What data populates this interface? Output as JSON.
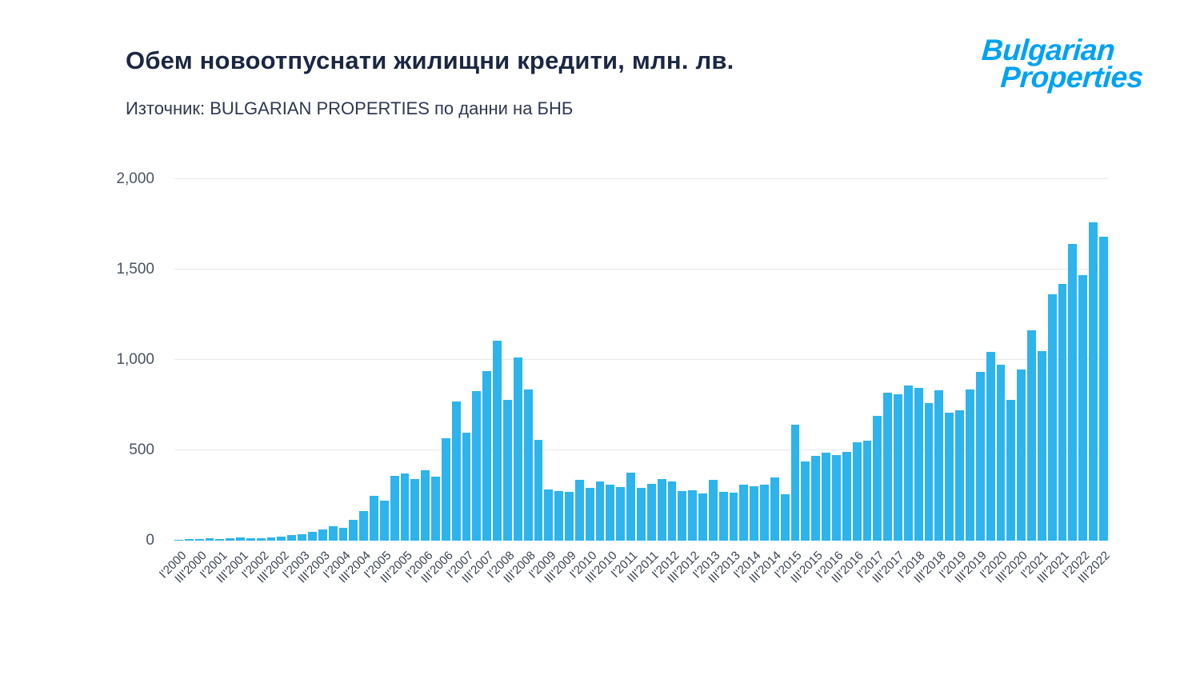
{
  "header": {
    "title": "Обем новоотпуснати жилищни кредити, млн. лв.",
    "source": "Източник: BULGARIAN PROPERTIES по данни на БНБ"
  },
  "logo": {
    "line1": "Bulgarian",
    "line2": "Properties",
    "color": "#00a2f2"
  },
  "chart_data": {
    "type": "bar",
    "title": "Обем новоотпуснати жилищни кредити, млн. лв.",
    "subtitle": "Източник: BULGARIAN PROPERTIES по данни на БНБ",
    "unit": "млн. лв.",
    "bar_color": "#2db4ec",
    "grid": "horizontal",
    "legend_position": "none",
    "ylim": [
      0,
      2000
    ],
    "yticks": [
      0,
      500,
      1000,
      1500,
      2000
    ],
    "ytick_labels": [
      "0",
      "500",
      "1,000",
      "1,500",
      "2,000"
    ],
    "x_tick_every": 2,
    "x_ticks": [
      "I'2000",
      "III'2000",
      "I'2001",
      "III'2001",
      "I'2002",
      "III'2002",
      "I'2003",
      "III'2003",
      "I'2004",
      "III'2004",
      "I'2005",
      "III'2005",
      "I'2006",
      "III'2006",
      "I'2007",
      "III'2007",
      "I'2008",
      "III'2008",
      "I'2009",
      "III'2009",
      "I'2010",
      "III'2010",
      "I'2011",
      "III'2011",
      "I'2012",
      "III'2012",
      "I'2013",
      "III'2013",
      "I'2014",
      "III'2014",
      "I'2015",
      "III'2015",
      "I'2016",
      "III'2016",
      "I'2017",
      "III'2017",
      "I'2018",
      "III'2018",
      "I'2019",
      "III'2019",
      "I'2020",
      "III'2020",
      "I'2021",
      "III'2021",
      "I'2022",
      "III'2022"
    ],
    "frequency": "quarterly",
    "values": [
      4,
      7,
      9,
      12,
      10,
      14,
      18,
      15,
      13,
      17,
      24,
      32,
      35,
      48,
      62,
      78,
      72,
      115,
      165,
      248,
      222,
      358,
      370,
      340,
      388,
      352,
      568,
      772,
      598,
      828,
      938,
      1108,
      778,
      1012,
      838,
      558,
      283,
      275,
      270,
      338,
      290,
      328,
      310,
      298,
      378,
      290,
      313,
      342,
      328,
      273,
      280,
      260,
      338,
      270,
      265,
      310,
      300,
      310,
      350,
      255,
      640,
      440,
      470,
      485,
      475,
      490,
      545,
      555,
      690,
      820,
      810,
      860,
      845,
      760,
      830,
      710,
      720,
      835,
      935,
      1045,
      975,
      780,
      945,
      1165,
      1050,
      1365,
      1420,
      1640,
      1470,
      1760,
      1680
    ]
  }
}
